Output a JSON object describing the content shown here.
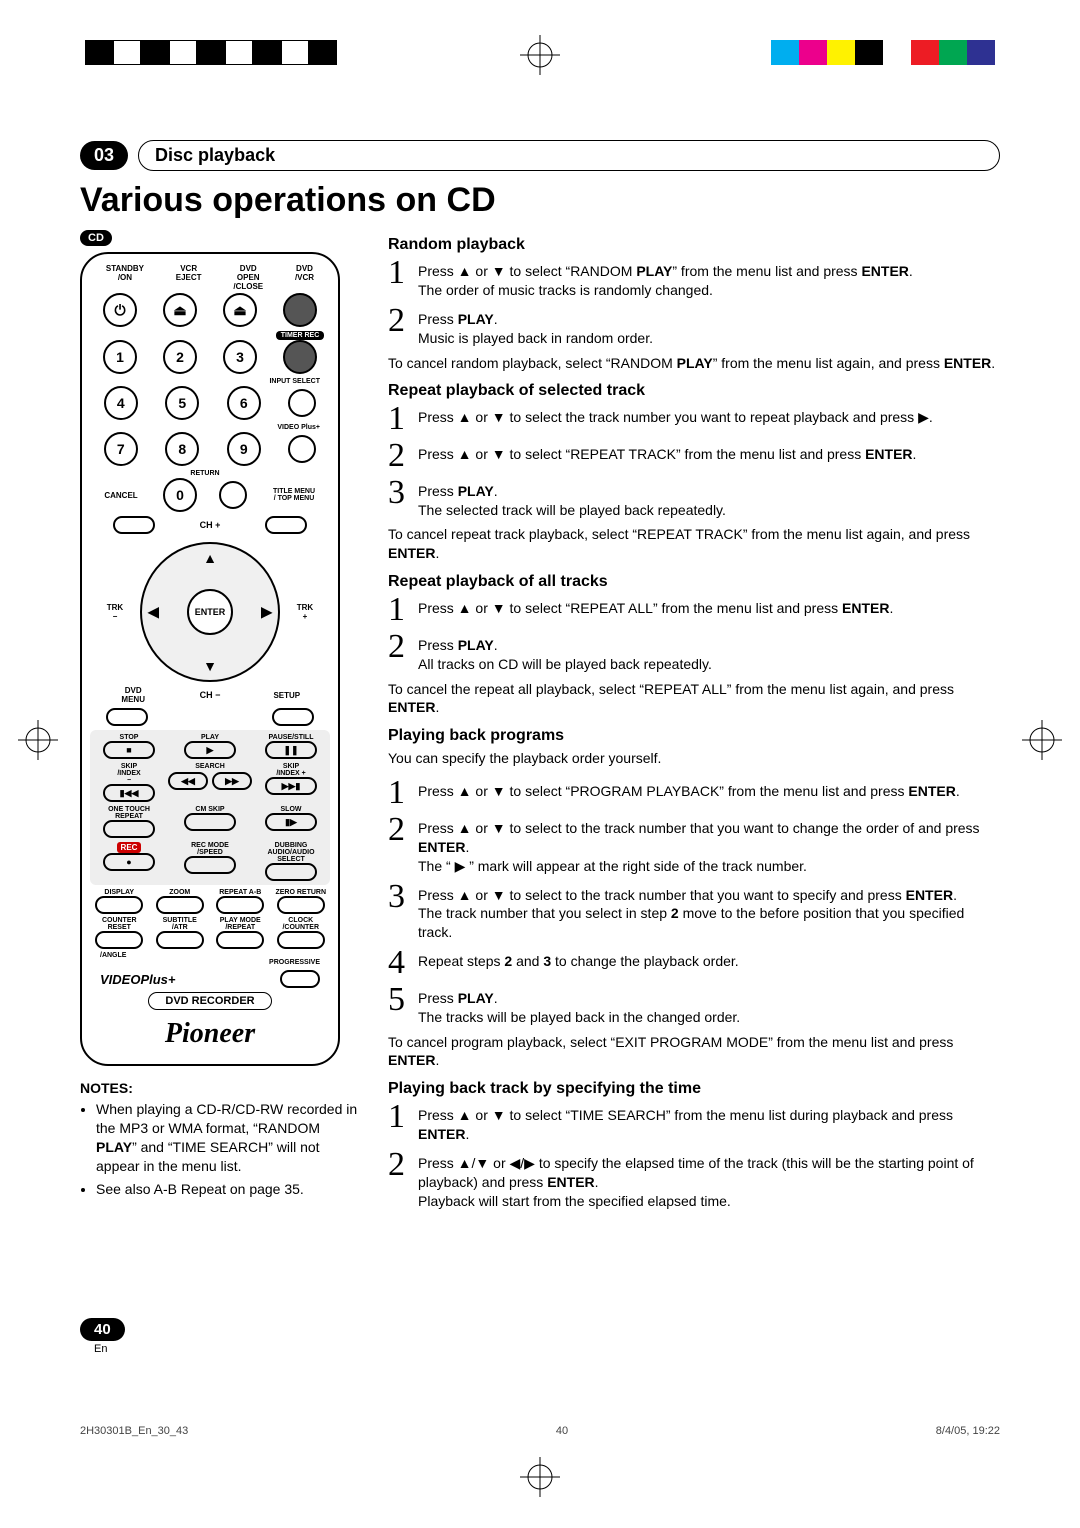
{
  "regbars_left": [
    "#000",
    "#fff",
    "#000",
    "#fff",
    "#000",
    "#fff",
    "#000",
    "#fff",
    "#000"
  ],
  "regbars_right": [
    "#00aeef",
    "#ec008c",
    "#fff200",
    "#000",
    "#fff",
    "#ed1c24",
    "#00a651",
    "#2e3192"
  ],
  "chapter_num": "03",
  "chapter_title": "Disc playback",
  "h1": "Various operations on CD",
  "badge_cd": "CD",
  "remote": {
    "row1_labels": [
      "STANDBY\n/ON",
      "VCR\nEJECT",
      "DVD\nOPEN\n/CLOSE",
      "DVD\n/VCR"
    ],
    "timer_rec": "TIMER REC",
    "input_select": "INPUT SELECT",
    "video_plus_lbl": "VIDEO Plus+",
    "return": "RETURN",
    "cancel": "CANCEL",
    "title_menu": "TITLE MENU\n/ TOP MENU",
    "ch_plus": "CH +",
    "ch_minus": "CH −",
    "trk_minus": "TRK\n−",
    "trk_plus": "TRK\n+",
    "dvd_menu": "DVD\nMENU",
    "setup": "SETUP",
    "enter": "ENTER",
    "stop": "STOP",
    "play": "PLAY",
    "pause": "PAUSE/STILL",
    "skip_index_m": "SKIP\n/INDEX\n−",
    "search_rew": "SEARCH\n◀◀ REW",
    "search_fwd": "F.FWD ▶▶",
    "skip_index_p": "SKIP\n/INDEX +",
    "one_touch": "ONE TOUCH\nREPEAT",
    "cm_skip": "CM SKIP",
    "slow": "SLOW",
    "rec": "REC",
    "rec_mode": "REC MODE\n/SPEED",
    "dubbing": "DUBBING",
    "audio": "AUDIO/AUDIO\nSELECT",
    "row_a": [
      "DISPLAY",
      "ZOOM",
      "REPEAT A-B",
      "ZERO RETURN"
    ],
    "row_b": [
      "COUNTER\nRESET",
      "SUBTITLE\n/ATR",
      "PLAY MODE\n/REPEAT",
      "CLOCK\n/COUNTER"
    ],
    "angle": "/ANGLE",
    "progressive": "PROGRESSIVE",
    "videoplus_brand": "VIDEOPlus+",
    "dvd_recorder": "DVD RECORDER",
    "brand": "Pioneer"
  },
  "notes_title": "NOTES:",
  "notes": [
    "When playing a CD-R/CD-RW recorded in the MP3 or WMA format, “RANDOM PLAY” and “TIME SEARCH” will not appear in the menu list.",
    "See also A-B Repeat on page 35."
  ],
  "sections": {
    "random": {
      "title": "Random playback",
      "s1": "Press ▲ or ▼ to select “RANDOM PLAY” from the menu list and press ENTER.\nThe order of music tracks is randomly changed.",
      "s2": "Press PLAY.\nMusic is played back in random order.",
      "cancel": "To cancel random playback, select “RANDOM PLAY” from the menu list again, and press ENTER."
    },
    "repeat_track": {
      "title": "Repeat playback of selected track",
      "s1": "Press ▲ or ▼ to select the track number you want to repeat playback and press ▶.",
      "s2": "Press ▲ or ▼ to select “REPEAT TRACK” from the menu list and press ENTER.",
      "s3": "Press PLAY.\nThe selected track will be played back repeatedly.",
      "cancel": "To cancel repeat track playback, select “REPEAT TRACK” from the menu list again, and press ENTER."
    },
    "repeat_all": {
      "title": "Repeat playback of all tracks",
      "s1": "Press ▲ or ▼ to select “REPEAT ALL” from the menu list and press ENTER.",
      "s2": "Press PLAY.\nAll tracks on CD will be played back repeatedly.",
      "cancel": "To cancel the repeat all playback, select “REPEAT ALL” from the menu list again, and press ENTER."
    },
    "programs": {
      "title": "Playing back programs",
      "intro": "You can specify the playback order yourself.",
      "s1": "Press ▲ or ▼ to select “PROGRAM PLAYBACK” from the menu list and press ENTER.",
      "s2": "Press ▲ or ▼ to select to the track number that you want to change the order of and press ENTER.\nThe “ ▶ ” mark will appear at the right side of the track number.",
      "s3": "Press ▲ or ▼ to select to the track number that you want to specify and press ENTER.\nThe track number that you select in step 2 move to the before position that you specified track.",
      "s4": "Repeat steps 2 and 3 to change the playback order.",
      "s5": "Press PLAY.\nThe tracks will be played back in the changed order.",
      "cancel": "To cancel program playback, select “EXIT PROGRAM MODE” from the menu list and press ENTER."
    },
    "timesearch": {
      "title": "Playing back track by specifying the time",
      "s1": "Press ▲ or ▼ to select “TIME SEARCH” from the menu list during playback and press ENTER.",
      "s2": "Press ▲/▼ or ◀/▶ to specify the elapsed time of the track (this will be the starting point of playback) and press ENTER.\nPlayback will start from the specified elapsed time."
    }
  },
  "page_num": "40",
  "page_lang": "En",
  "footer_left": "2H30301B_En_30_43",
  "footer_mid": "40",
  "footer_right": "8/4/05, 19:22"
}
